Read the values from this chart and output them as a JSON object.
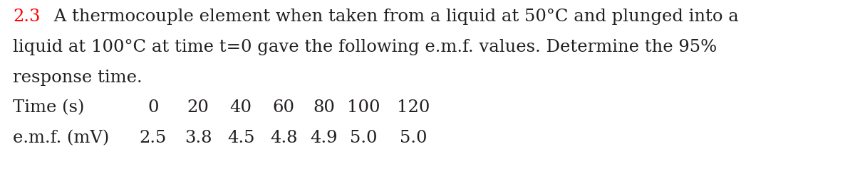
{
  "number": "2.3",
  "number_color": "#ff0000",
  "body_color": "#231f20",
  "background_color": "#ffffff",
  "line1_suffix": " A thermocouple element when taken from a liquid at 50°C and plunged into a",
  "line2": "liquid at 100°C at time t=0 gave the following e.m.f. values. Determine the 95%",
  "line3": "response time.",
  "row1_label": "Time (s)",
  "row1_values": [
    "0",
    "20",
    "40",
    "60",
    "80",
    "100",
    "120"
  ],
  "row2_label": "e.m.f. (mV)",
  "row2_values": [
    "2.5",
    "3.8",
    "4.5",
    "4.8",
    "4.9",
    "5.0",
    "5.0"
  ],
  "font_size": 17.5,
  "font_family": "DejaVu Serif",
  "fig_width": 12.0,
  "fig_height": 2.72,
  "dpi": 100
}
